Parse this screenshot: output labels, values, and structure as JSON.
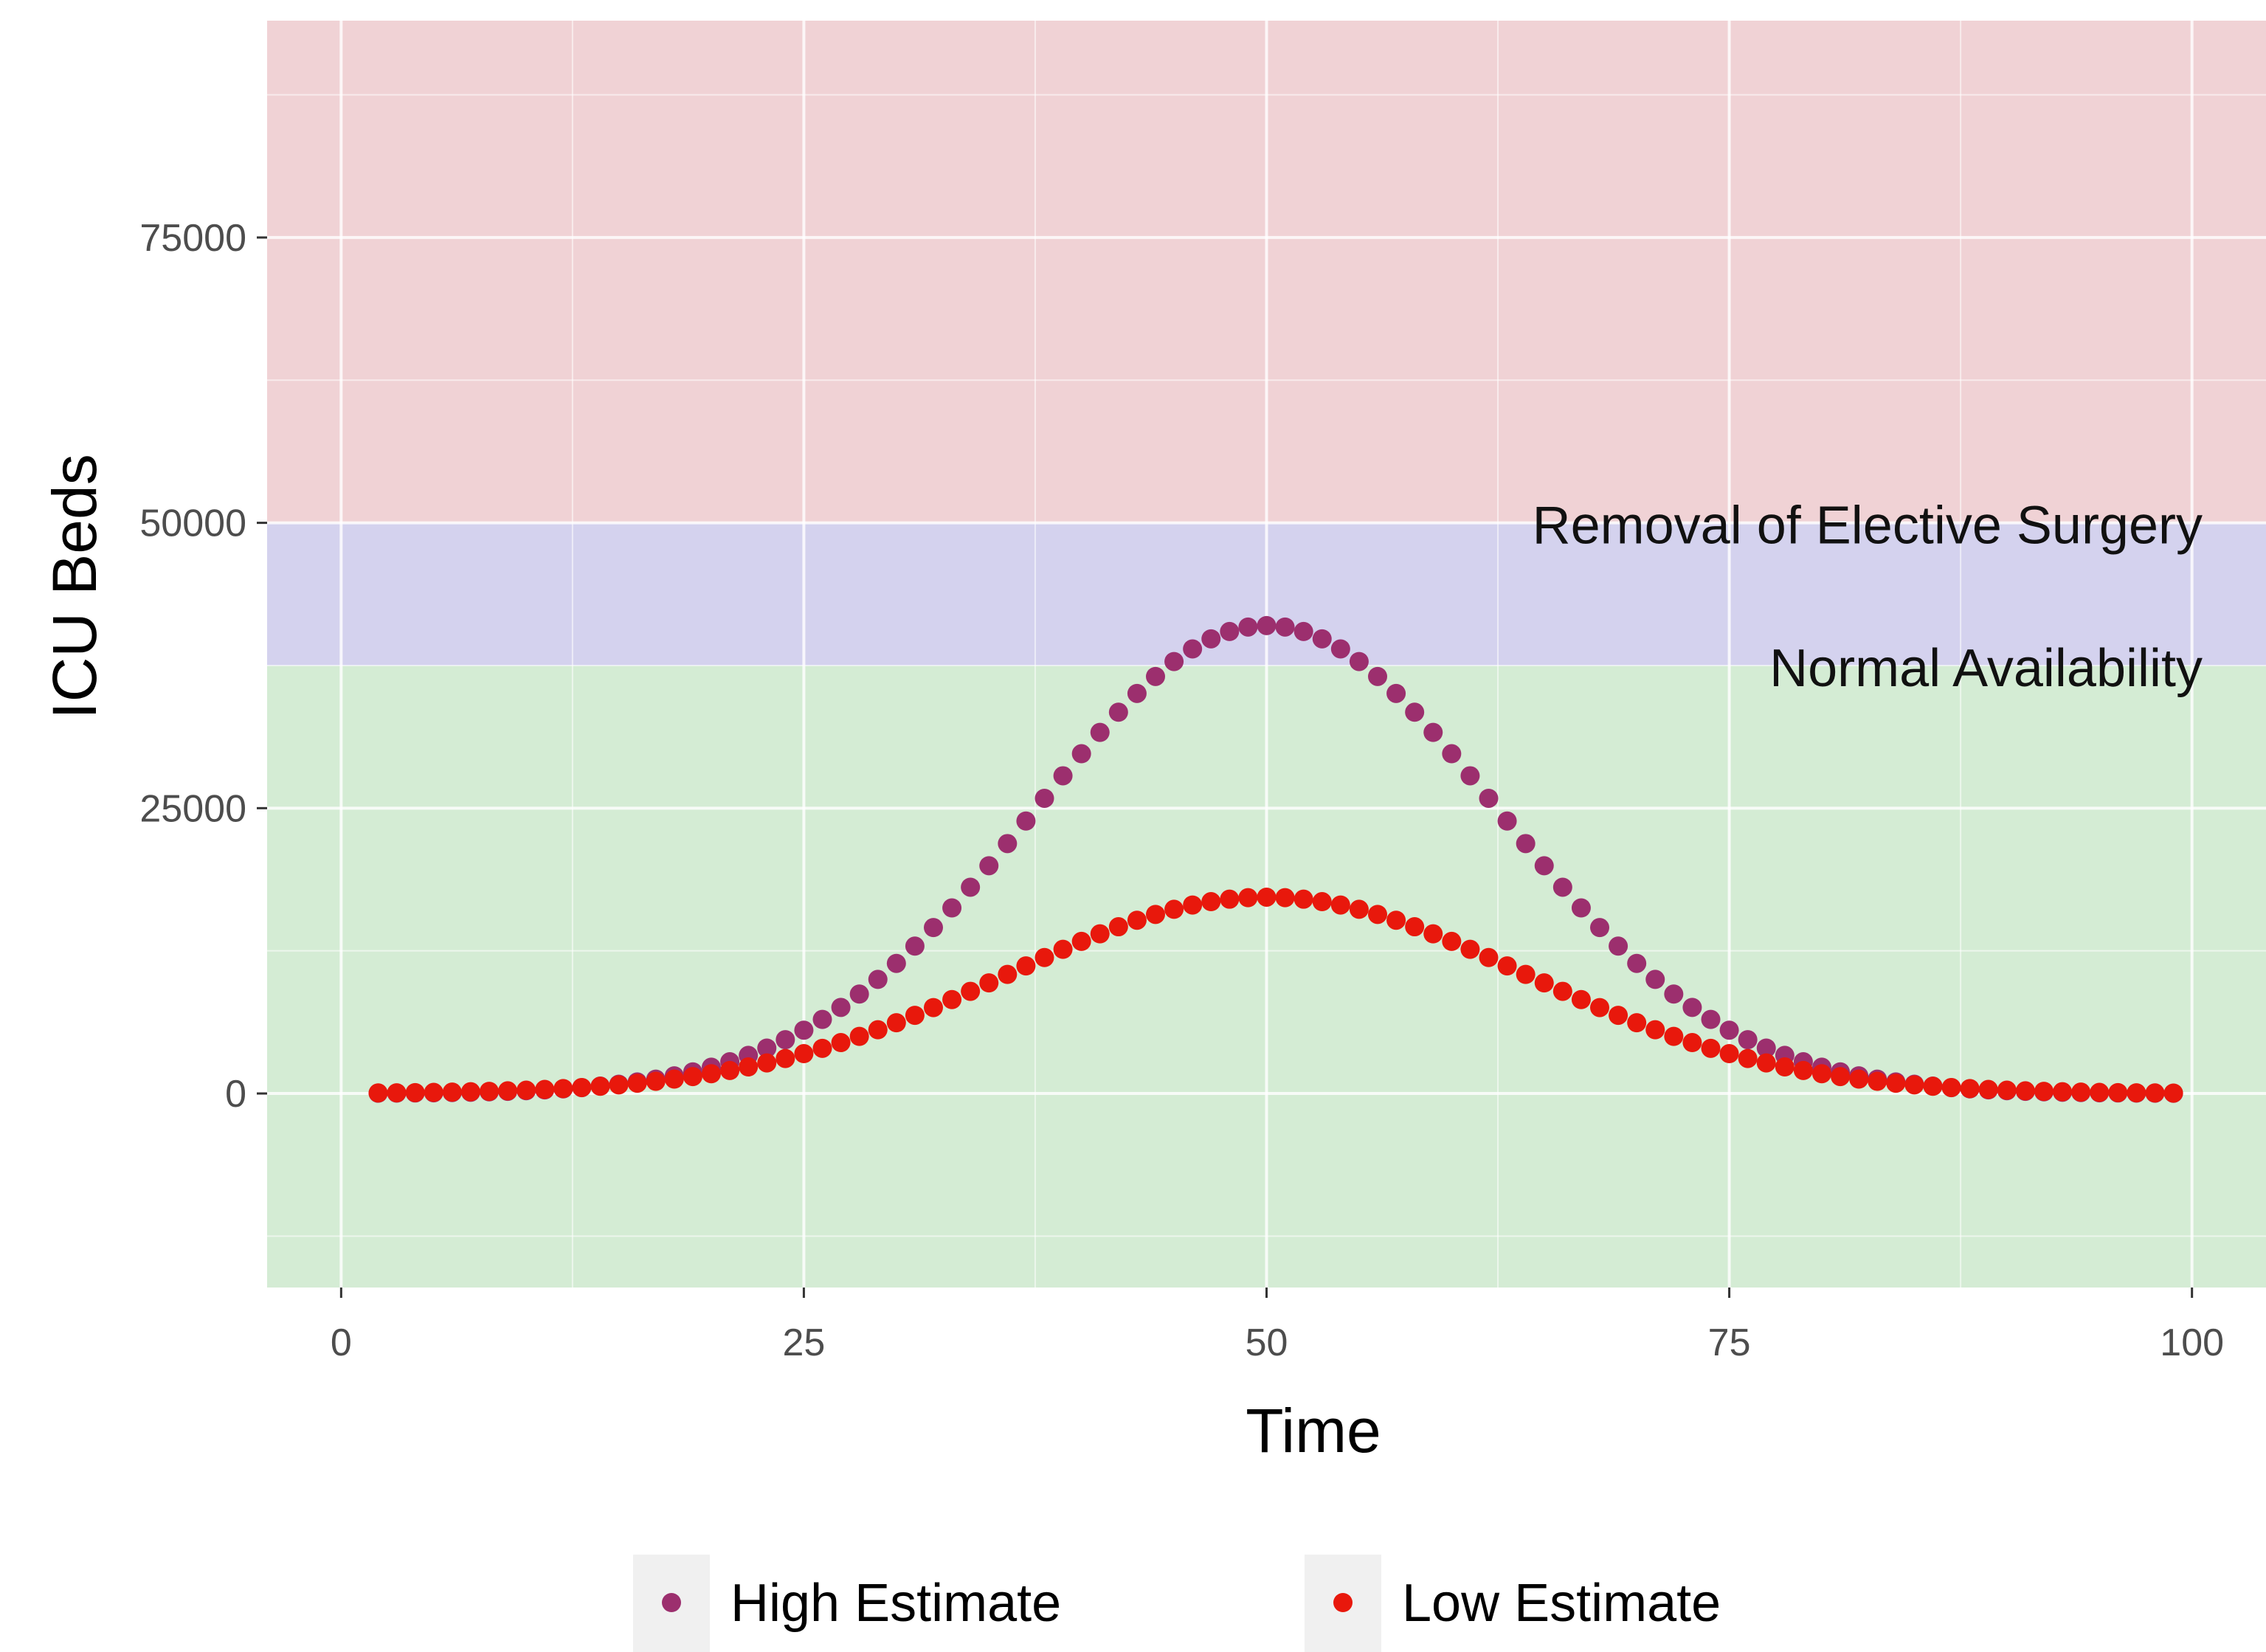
{
  "chart_data": {
    "type": "scatter",
    "xlabel": "Time",
    "ylabel": "ICU Beds",
    "xlim": [
      -4,
      104
    ],
    "ylim": [
      -17000,
      94000
    ],
    "x_ticks": [
      0,
      25,
      50,
      75,
      100
    ],
    "y_ticks": [
      0,
      25000,
      50000,
      75000
    ],
    "x_tick_labels": [
      "0",
      "25",
      "50",
      "75",
      "100"
    ],
    "y_tick_labels": [
      "0",
      "25000",
      "50000",
      "75000"
    ],
    "grid": true,
    "legend_position": "bottom",
    "bands": [
      {
        "label": "",
        "from": -17000,
        "to": 37500,
        "color": "#d4ecd4"
      },
      {
        "label": "Normal Availability",
        "from": 37500,
        "to": 50000,
        "color": "#d4d2ee"
      },
      {
        "label": "Removal of Elective Surgery",
        "from": 50000,
        "to": 94000,
        "color": "#f0d2d5"
      }
    ],
    "series": [
      {
        "name": "High Estimate",
        "color": "#9c2f6e",
        "peak_x": 50,
        "peak_y": 41000,
        "spread": 12.5,
        "x_start": 2,
        "x_end": 99
      },
      {
        "name": "Low Estimate",
        "color": "#e8180c",
        "peak_x": 50,
        "peak_y": 17200,
        "spread": 14,
        "x_start": 2,
        "x_end": 99
      }
    ]
  }
}
